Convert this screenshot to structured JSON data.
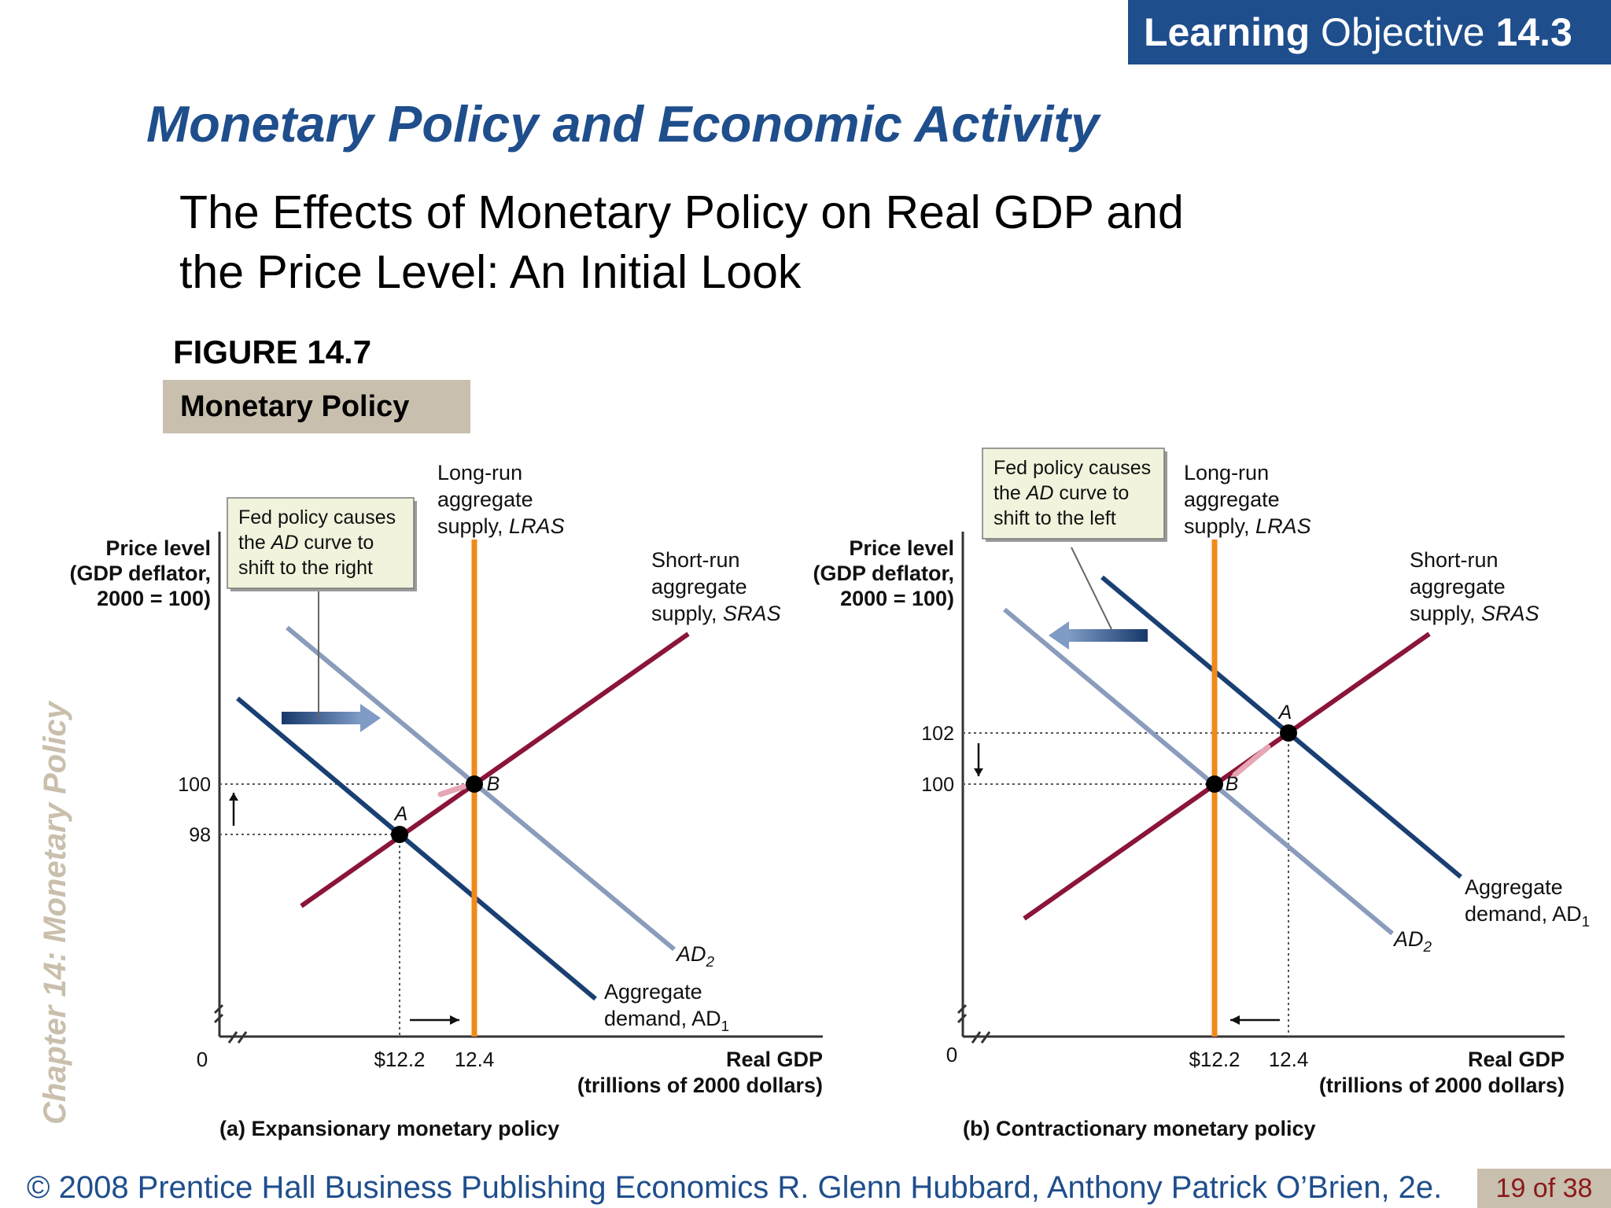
{
  "header": {
    "lo_bold": "Learning",
    "lo_rest": "Objective",
    "lo_number": "14.3"
  },
  "title": "Monetary Policy and Economic Activity",
  "subtitle_line1": "The Effects of Monetary Policy on Real GDP and",
  "subtitle_line2": "the Price Level:  An Initial Look",
  "figure_number": "FIGURE 14.7",
  "figure_tag": "Monetary Policy",
  "side_label": "Chapter 14:  Monetary Policy",
  "footer": "© 2008 Prentice Hall Business Publishing   Economics  R. Glenn Hubbard, Anthony Patrick O’Brien, 2e.",
  "pager": "19 of 38",
  "colors": {
    "lras": "#f08a1a",
    "sras": "#8b1538",
    "ad1": "#1a3f73",
    "ad2": "#8a9cbc",
    "arrow": "#2a5590",
    "callout_bg": "#f1f3dc"
  },
  "chart_data": [
    {
      "type": "line",
      "title": "(a) Expansionary monetary policy",
      "ylabel_lines": [
        "Price level",
        "(GDP deflator,",
        "2000 = 100)"
      ],
      "xlabel_lines": [
        "Real GDP",
        "(trillions of 2000 dollars)"
      ],
      "x_ticks": [
        {
          "value": 12.2,
          "label": "$12.2"
        },
        {
          "value": 12.4,
          "label": "12.4"
        }
      ],
      "y_ticks": [
        {
          "value": 98,
          "label": "98"
        },
        {
          "value": 100,
          "label": "100"
        }
      ],
      "origin_label": "0",
      "lras_label": [
        "Long-run",
        "aggregate",
        "supply, LRAS"
      ],
      "sras_label": [
        "Short-run",
        "aggregate",
        "supply, SRAS"
      ],
      "ad1_label": [
        "Aggregate",
        "demand, AD1"
      ],
      "ad2_label": "AD2",
      "callout": [
        "Fed policy causes",
        "the AD curve to",
        "shift to the right"
      ],
      "points": [
        {
          "name": "A",
          "x": 12.2,
          "y": 98
        },
        {
          "name": "B",
          "x": 12.4,
          "y": 100
        }
      ]
    },
    {
      "type": "line",
      "title": "(b) Contractionary monetary policy",
      "ylabel_lines": [
        "Price level",
        "(GDP deflator,",
        "2000 = 100)"
      ],
      "xlabel_lines": [
        "Real GDP",
        "(trillions of 2000 dollars)"
      ],
      "x_ticks": [
        {
          "value": 12.2,
          "label": "$12.2"
        },
        {
          "value": 12.4,
          "label": "12.4"
        }
      ],
      "y_ticks": [
        {
          "value": 100,
          "label": "100"
        },
        {
          "value": 102,
          "label": "102"
        }
      ],
      "origin_label": "0",
      "lras_label": [
        "Long-run",
        "aggregate",
        "supply, LRAS"
      ],
      "sras_label": [
        "Short-run",
        "aggregate",
        "supply, SRAS"
      ],
      "ad1_label": [
        "Aggregate",
        "demand, AD1"
      ],
      "ad2_label": "AD2",
      "callout": [
        "Fed policy causes",
        "the AD curve to",
        "shift to the left"
      ],
      "points": [
        {
          "name": "A",
          "x": 12.4,
          "y": 102
        },
        {
          "name": "B",
          "x": 12.2,
          "y": 100
        }
      ]
    }
  ]
}
